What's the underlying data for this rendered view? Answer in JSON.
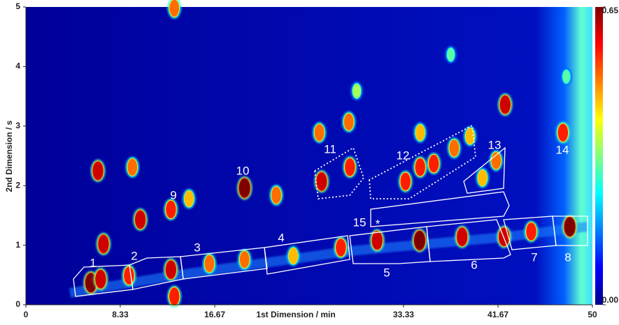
{
  "chart_data": {
    "type": "contour2d",
    "xlabel": "1st Dimension / min",
    "ylabel": "2nd Dimension / s",
    "xlim": [
      0,
      50
    ],
    "ylim": [
      0,
      5
    ],
    "xticks": [
      0,
      8.33,
      16.67,
      33.33,
      41.67,
      50
    ],
    "yticks": [
      0,
      1,
      2,
      3,
      4,
      5
    ],
    "clim": [
      0,
      0.65
    ],
    "cticks": [
      {
        "value": 0.65,
        "label": "0.65"
      },
      {
        "value": 0,
        "label": "0.00"
      }
    ],
    "colormap": "jet",
    "regions": [
      "1",
      "2",
      "3",
      "4",
      "5",
      "6",
      "7",
      "8",
      "9",
      "10",
      "11",
      "12",
      "13",
      "14",
      "15",
      "*"
    ],
    "peaks": {
      "x": [
        5.74,
        6.6,
        9.1,
        12.8,
        16.2,
        19.3,
        23.6,
        27.8,
        31.0,
        34.75,
        38.5,
        42.2,
        44.6,
        48.0,
        6.36,
        6.85,
        10.1,
        12.8,
        14.4,
        19.3,
        22.1,
        26.1,
        25.9,
        28.5,
        28.6,
        33.5,
        34.8,
        36.0,
        37.8,
        39.2,
        40.3,
        41.5,
        42.3,
        47.4,
        34.8,
        29.2,
        37.5,
        47.7,
        13.1,
        13.1,
        9.4
      ],
      "y": [
        0.37,
        0.43,
        0.49,
        0.59,
        0.69,
        0.76,
        0.82,
        0.96,
        1.08,
        1.08,
        1.14,
        1.14,
        1.23,
        1.31,
        2.25,
        1.02,
        1.43,
        1.6,
        1.78,
        1.96,
        1.84,
        2.07,
        2.89,
        3.07,
        2.31,
        2.07,
        2.31,
        2.37,
        2.63,
        2.83,
        2.13,
        2.42,
        3.36,
        2.89,
        2.89,
        3.59,
        4.2,
        3.83,
        4.98,
        0.14,
        2.31
      ],
      "values": [
        0.65,
        0.6,
        0.55,
        0.6,
        0.5,
        0.5,
        0.45,
        0.55,
        0.6,
        0.65,
        0.6,
        0.6,
        0.55,
        0.65,
        0.6,
        0.6,
        0.6,
        0.55,
        0.45,
        0.65,
        0.5,
        0.6,
        0.5,
        0.5,
        0.55,
        0.55,
        0.55,
        0.55,
        0.5,
        0.45,
        0.45,
        0.5,
        0.6,
        0.55,
        0.45,
        0.35,
        0.3,
        0.3,
        0.5,
        0.55,
        0.5
      ]
    }
  }
}
